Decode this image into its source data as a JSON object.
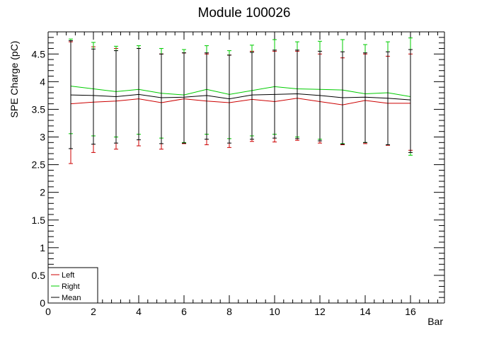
{
  "chart_data": {
    "type": "line",
    "title": "Module 100026",
    "xlabel": "Bar",
    "ylabel": "SPE Charge (pC)",
    "xlim": [
      0,
      17.5
    ],
    "ylim": [
      0,
      4.9
    ],
    "x_ticks": [
      0,
      2,
      4,
      6,
      8,
      10,
      12,
      14,
      16
    ],
    "y_ticks": [
      0,
      0.5,
      1,
      1.5,
      2,
      2.5,
      3,
      3.5,
      4,
      4.5
    ],
    "y_tick_labels": [
      "0",
      "0.5",
      "1",
      "1.5",
      "2",
      "2.5",
      "3",
      "3.5",
      "4",
      "4.5"
    ],
    "x": [
      1,
      2,
      3,
      4,
      5,
      6,
      7,
      8,
      9,
      10,
      11,
      12,
      13,
      14,
      15,
      16
    ],
    "legend_position": "bottom-left",
    "grid": false,
    "series": [
      {
        "name": "Left",
        "color": "#cc0000",
        "values": [
          3.6,
          3.63,
          3.65,
          3.69,
          3.62,
          3.69,
          3.65,
          3.62,
          3.68,
          3.64,
          3.7,
          3.64,
          3.58,
          3.66,
          3.61,
          3.61
        ],
        "err_low": [
          2.52,
          2.72,
          2.78,
          2.84,
          2.78,
          2.88,
          2.86,
          2.81,
          2.92,
          2.91,
          2.94,
          2.89,
          2.86,
          2.88,
          2.85,
          2.76
        ],
        "err_high": [
          4.72,
          4.63,
          4.6,
          4.6,
          4.5,
          4.52,
          4.5,
          4.48,
          4.55,
          4.55,
          4.55,
          4.5,
          4.43,
          4.5,
          4.46,
          4.5
        ]
      },
      {
        "name": "Right",
        "color": "#00cc00",
        "values": [
          3.92,
          3.87,
          3.82,
          3.86,
          3.79,
          3.76,
          3.86,
          3.77,
          3.84,
          3.91,
          3.87,
          3.86,
          3.85,
          3.78,
          3.8,
          3.73
        ],
        "err_low": [
          3.06,
          3.02,
          3.0,
          3.05,
          2.98,
          2.9,
          3.05,
          2.97,
          3.02,
          3.05,
          3.0,
          2.96,
          2.88,
          2.9,
          2.86,
          2.67
        ],
        "err_high": [
          4.77,
          4.71,
          4.64,
          4.65,
          4.6,
          4.58,
          4.65,
          4.56,
          4.66,
          4.76,
          4.72,
          4.73,
          4.76,
          4.67,
          4.72,
          4.79
        ]
      },
      {
        "name": "Mean",
        "color": "#000000",
        "values": [
          3.76,
          3.75,
          3.73,
          3.77,
          3.71,
          3.72,
          3.75,
          3.69,
          3.76,
          3.77,
          3.78,
          3.75,
          3.71,
          3.72,
          3.7,
          3.67
        ],
        "err_low": [
          2.79,
          2.87,
          2.89,
          2.95,
          2.88,
          2.89,
          2.96,
          2.89,
          2.96,
          2.98,
          2.97,
          2.93,
          2.87,
          2.9,
          2.86,
          2.72
        ],
        "err_high": [
          4.74,
          4.59,
          4.56,
          4.6,
          4.5,
          4.52,
          4.52,
          4.48,
          4.53,
          4.57,
          4.57,
          4.55,
          4.54,
          4.52,
          4.54,
          4.58
        ]
      }
    ]
  }
}
